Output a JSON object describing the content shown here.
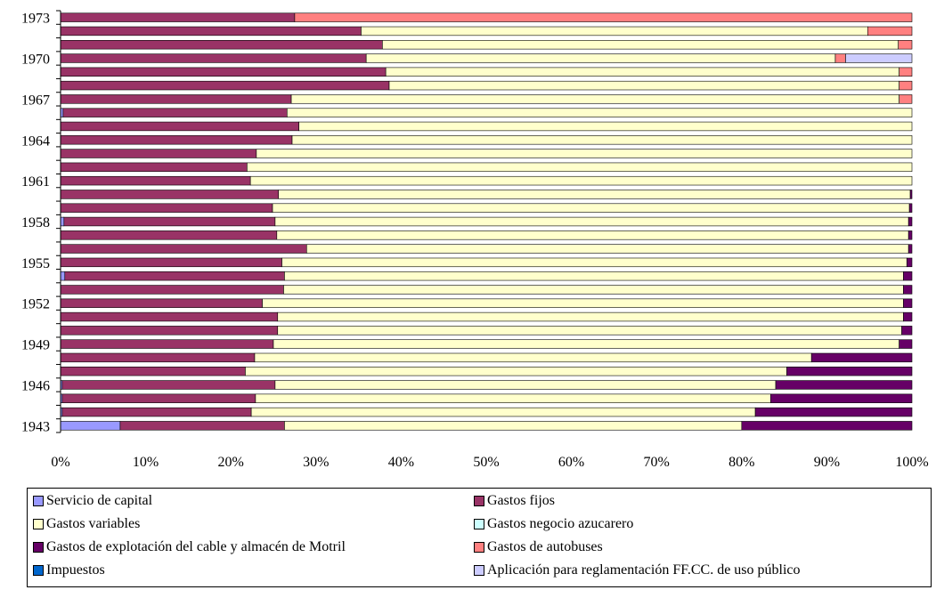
{
  "chart_data": {
    "type": "bar",
    "orientation": "horizontal",
    "stacked": "percent",
    "title": "",
    "xlabel": "",
    "ylabel": "",
    "xlim": [
      0,
      100
    ],
    "x_tick_labels": [
      "0%",
      "10%",
      "20%",
      "30%",
      "40%",
      "50%",
      "60%",
      "70%",
      "80%",
      "90%",
      "100%"
    ],
    "y_tick_labels": [
      "1943",
      "1946",
      "1949",
      "1952",
      "1955",
      "1958",
      "1961",
      "1964",
      "1967",
      "1970",
      "1973"
    ],
    "categories": [
      "1943",
      "1944",
      "1945",
      "1946",
      "1947",
      "1948",
      "1949",
      "1950",
      "1951",
      "1952",
      "1953",
      "1954",
      "1955",
      "1956",
      "1957",
      "1958",
      "1959",
      "1960",
      "1961",
      "1962",
      "1963",
      "1964",
      "1965",
      "1966",
      "1967",
      "1968",
      "1969",
      "1970",
      "1971",
      "1972",
      "1973"
    ],
    "grid": false,
    "legend_position": "bottom",
    "series": [
      {
        "name": "Servicio de capital",
        "color": "#9999FF",
        "values": [
          7.0,
          0.2,
          0.2,
          0.2,
          0.0,
          0.0,
          0.0,
          0.0,
          0.0,
          0.0,
          0.0,
          0.5,
          0.0,
          0.0,
          0.0,
          0.4,
          0.0,
          0.0,
          0.0,
          0.0,
          0.0,
          0.0,
          0.0,
          0.3,
          0.0,
          0.0,
          0.0,
          0.0,
          0.0,
          0.0,
          0.0
        ]
      },
      {
        "name": "Gastos fijos",
        "color": "#993366",
        "values": [
          19.3,
          22.2,
          22.7,
          25.0,
          21.7,
          22.8,
          25.0,
          25.5,
          25.5,
          23.7,
          26.2,
          25.8,
          26.0,
          28.9,
          25.4,
          24.8,
          24.9,
          25.6,
          22.3,
          21.9,
          23.0,
          27.2,
          28.0,
          26.3,
          27.1,
          38.6,
          38.2,
          35.9,
          37.8,
          35.3,
          27.5
        ]
      },
      {
        "name": "Gastos variables",
        "color": "#FFFFCC",
        "values": [
          53.7,
          59.2,
          60.5,
          58.8,
          63.6,
          65.4,
          73.5,
          73.3,
          73.5,
          75.3,
          72.8,
          72.7,
          73.4,
          70.7,
          74.2,
          74.4,
          74.8,
          74.2,
          77.7,
          78.1,
          77.0,
          72.8,
          72.0,
          73.4,
          71.4,
          59.9,
          60.3,
          55.1,
          60.6,
          59.5,
          0.0
        ]
      },
      {
        "name": "Gastos negocio azucarero",
        "color": "#CCFFFF",
        "values": [
          0.0,
          0.0,
          0.0,
          0.0,
          0.0,
          0.0,
          0.0,
          0.0,
          0.0,
          0.0,
          0.0,
          0.0,
          0.0,
          0.0,
          0.0,
          0.0,
          0.0,
          0.0,
          0.0,
          0.0,
          0.0,
          0.0,
          0.0,
          0.0,
          0.0,
          0.0,
          0.0,
          0.0,
          0.0,
          0.0,
          0.0
        ]
      },
      {
        "name": "Gastos de explotación del cable y almacén de Motril",
        "color": "#660066",
        "values": [
          20.0,
          18.4,
          16.6,
          16.0,
          14.7,
          11.8,
          1.5,
          1.2,
          1.0,
          1.0,
          1.0,
          1.0,
          0.6,
          0.4,
          0.4,
          0.4,
          0.3,
          0.2,
          0.0,
          0.0,
          0.0,
          0.0,
          0.0,
          0.0,
          0.0,
          0.0,
          0.0,
          0.0,
          0.0,
          0.0,
          0.0
        ]
      },
      {
        "name": "Gastos de autobuses",
        "color": "#FF8080",
        "values": [
          0.0,
          0.0,
          0.0,
          0.0,
          0.0,
          0.0,
          0.0,
          0.0,
          0.0,
          0.0,
          0.0,
          0.0,
          0.0,
          0.0,
          0.0,
          0.0,
          0.0,
          0.0,
          0.0,
          0.0,
          0.0,
          0.0,
          0.0,
          0.0,
          1.5,
          1.5,
          1.5,
          1.2,
          1.6,
          5.2,
          72.5
        ]
      },
      {
        "name": "Impuestos",
        "color": "#0066CC",
        "values": [
          0.0,
          0.0,
          0.0,
          0.0,
          0.0,
          0.0,
          0.0,
          0.0,
          0.0,
          0.0,
          0.0,
          0.0,
          0.0,
          0.0,
          0.0,
          0.0,
          0.0,
          0.0,
          0.0,
          0.0,
          0.0,
          0.0,
          0.0,
          0.0,
          0.0,
          0.0,
          0.0,
          0.0,
          0.0,
          0.0,
          0.0
        ]
      },
      {
        "name": "Aplicación para reglamentación FF.CC. de uso público",
        "color": "#CCCCFF",
        "values": [
          0.0,
          0.0,
          0.0,
          0.0,
          0.0,
          0.0,
          0.0,
          0.0,
          0.0,
          0.0,
          0.0,
          0.0,
          0.0,
          0.0,
          0.0,
          0.0,
          0.0,
          0.0,
          0.0,
          0.0,
          0.0,
          0.0,
          0.0,
          0.0,
          0.0,
          0.0,
          0.0,
          7.8,
          0.0,
          0.0,
          0.0
        ]
      }
    ]
  }
}
